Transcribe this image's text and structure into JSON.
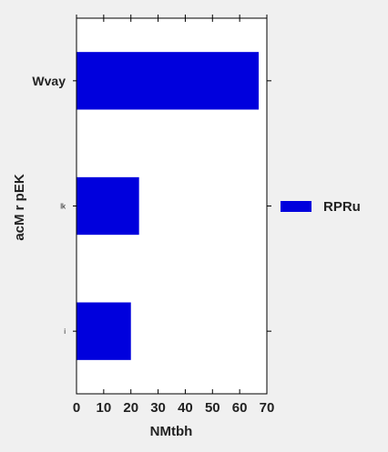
{
  "chart_data": {
    "type": "bar",
    "orientation": "horizontal",
    "categories": [
      "Wvay",
      "lk",
      "i"
    ],
    "series": [
      {
        "name": "RPRu",
        "values": [
          67,
          23,
          20
        ],
        "color": "#0000dd"
      }
    ],
    "xlabel": "NMtbh",
    "ylabel": "acM r pEK",
    "xlim": [
      0,
      70
    ],
    "xticks": [
      0,
      10,
      20,
      30,
      40,
      50,
      60,
      70
    ],
    "grid": false,
    "legend_position": "right"
  }
}
